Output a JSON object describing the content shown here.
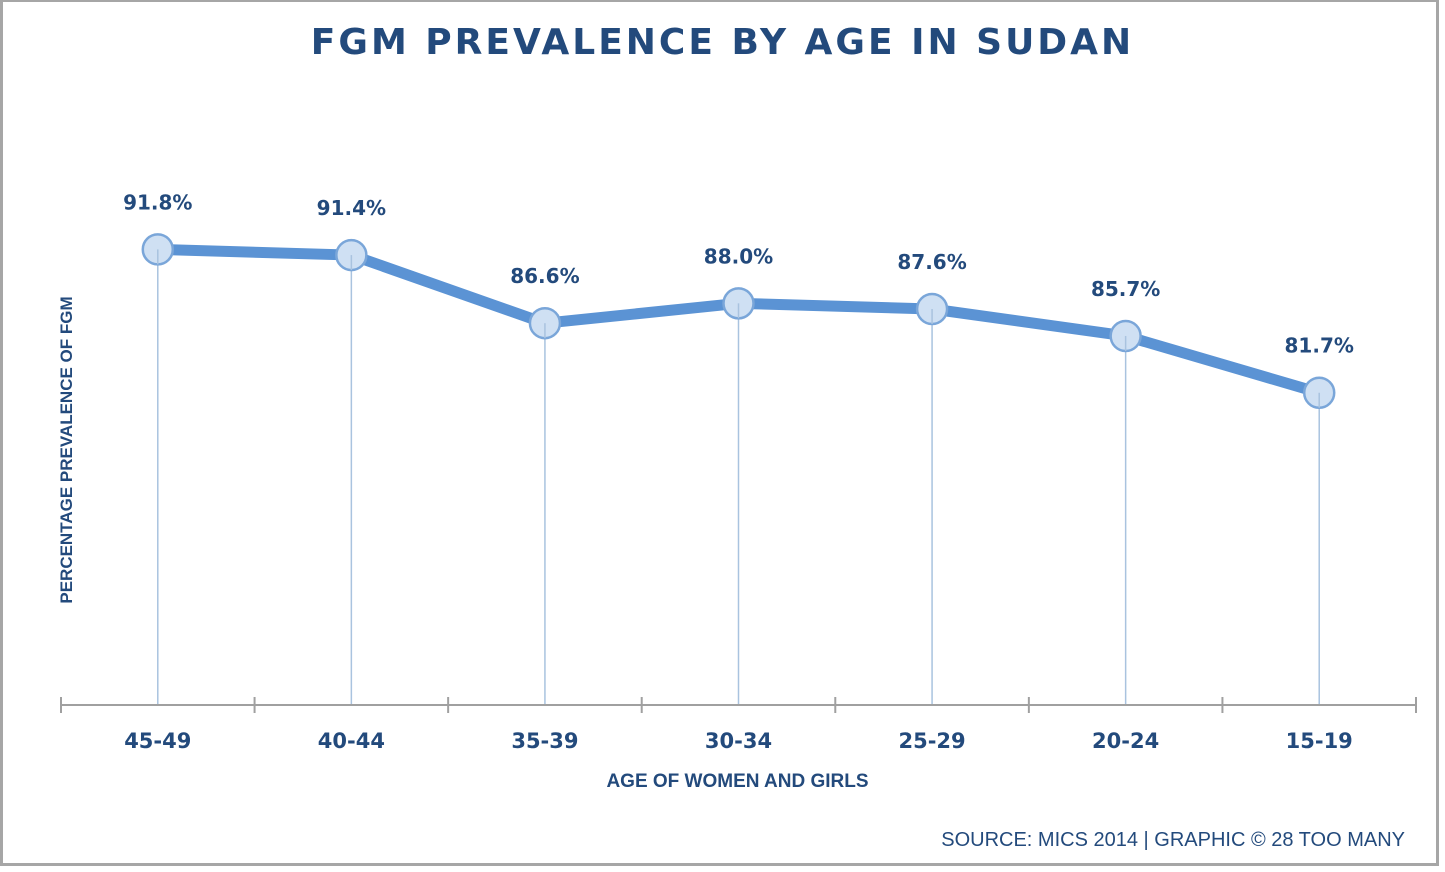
{
  "chart_data": {
    "type": "line",
    "title": "FGM PREVALENCE BY AGE IN SUDAN",
    "xlabel": "AGE OF WOMEN AND GIRLS",
    "ylabel": "PERCENTAGE PREVALENCE OF FGM",
    "categories": [
      "45-49",
      "40-44",
      "35-39",
      "30-34",
      "25-29",
      "20-24",
      "15-19"
    ],
    "series": [
      {
        "name": "FGM prevalence",
        "values": [
          91.8,
          91.4,
          86.6,
          88.0,
          87.6,
          85.7,
          81.7
        ],
        "labels": [
          "91.8%",
          "91.4%",
          "86.6%",
          "88.0%",
          "87.6%",
          "85.7%",
          "81.7%"
        ]
      }
    ],
    "ylim": [
      59.7,
      100
    ],
    "y_ticks_shown": false,
    "grid": false,
    "drop_lines": true,
    "legend": "none",
    "colors": {
      "line": "#5b93d4",
      "marker_fill": "#cfe0f3",
      "marker_stroke": "#7aa6d9",
      "drop_line": "#a9c3df",
      "axis": "#a0a0a0",
      "text": "#234a7c"
    }
  },
  "footer": {
    "source": "SOURCE: MICS 2014 | GRAPHIC © 28 TOO MANY"
  }
}
